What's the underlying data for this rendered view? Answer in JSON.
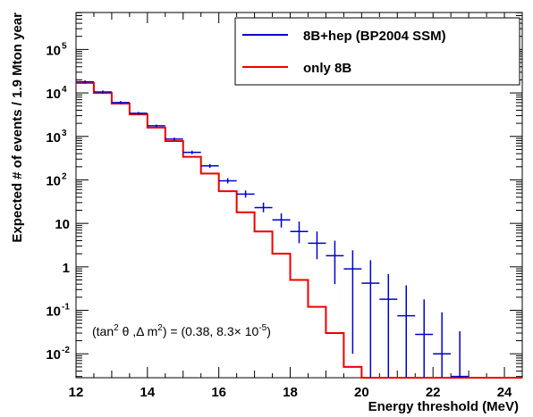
{
  "chart_data": {
    "type": "histogram-step-with-errorbars",
    "xlabel": "Energy threshold (MeV)",
    "ylabel": "Expected # of events / 1.9 Mton year",
    "xlim": [
      12,
      24.5
    ],
    "ylim_log10": [
      -2.55,
      5.85
    ],
    "y_scale": "log",
    "grid": false,
    "legend_position": "top-right",
    "x_ticks": [
      12,
      14,
      16,
      18,
      20,
      22,
      24
    ],
    "x_tick_labels": [
      "12",
      "14",
      "16",
      "18",
      "20",
      "22",
      "24"
    ],
    "y_tick_exponents": [
      -2,
      -1,
      0,
      1,
      2,
      3,
      4,
      5
    ],
    "y_tick_labels": [
      {
        "base": "10",
        "exp": "-2"
      },
      {
        "base": "10",
        "exp": "-1"
      },
      {
        "base": "1",
        "exp": ""
      },
      {
        "base": "10",
        "exp": ""
      },
      {
        "base": "10",
        "exp": "2"
      },
      {
        "base": "10",
        "exp": "3"
      },
      {
        "base": "10",
        "exp": "4"
      },
      {
        "base": "10",
        "exp": "5"
      }
    ],
    "annotation": {
      "a": "(tan",
      "a_sup": "2",
      "b": " θ ,Δ m",
      "b_sup": "2",
      "c": ") = (0.38, 8.3",
      "times": "×",
      "d": " 10",
      "d_sup": "-5",
      "e": ")"
    },
    "series": [
      {
        "name": "8B+hep (BP2004 SSM)",
        "color": "#0000cc",
        "style": "points-with-errorbars",
        "bin_low": [
          12.0,
          12.5,
          13.0,
          13.5,
          14.0,
          14.5,
          15.0,
          15.5,
          16.0,
          16.5,
          17.0,
          17.5,
          18.0,
          18.5,
          19.0,
          19.5,
          20.0,
          20.5,
          21.0,
          21.5,
          22.0,
          22.5
        ],
        "values": [
          18000,
          10500,
          6000,
          3400,
          1750,
          870,
          430,
          210,
          95,
          47,
          23,
          12,
          6.5,
          3.5,
          1.8,
          0.9,
          0.42,
          0.18,
          0.075,
          0.028,
          0.01,
          0.003
        ],
        "err_low": [
          1500,
          900,
          500,
          250,
          120,
          70,
          40,
          22,
          12,
          8,
          5,
          4,
          3,
          2,
          1.4,
          0.89,
          0.418,
          0.1798,
          0.0749,
          0.02799,
          0.00999,
          0.00299
        ],
        "err_high": [
          1500,
          900,
          500,
          250,
          120,
          70,
          40,
          22,
          15,
          10,
          7,
          5,
          4.5,
          3,
          2.2,
          1.5,
          1.0,
          0.5,
          0.3,
          0.15,
          0.08,
          0.03
        ]
      },
      {
        "name": "only 8B",
        "color": "#ee0000",
        "style": "step",
        "bin_low": [
          12.0,
          12.5,
          13.0,
          13.5,
          14.0,
          14.5,
          15.0,
          15.5,
          16.0,
          16.5,
          17.0,
          17.5,
          18.0,
          18.5,
          19.0,
          19.5,
          20.0,
          20.5,
          21.0,
          21.5,
          22.0,
          22.5,
          23.0,
          23.5,
          24.0
        ],
        "bin_width": 0.5,
        "values": [
          17000,
          10000,
          5700,
          3200,
          1600,
          780,
          340,
          140,
          55,
          18,
          6.5,
          2.0,
          0.5,
          0.12,
          0.03,
          0.005,
          0.0028,
          0.0028,
          0.0028,
          0.0028,
          0.0028,
          0.0028,
          0.0028,
          0.0028,
          0.0028
        ]
      }
    ]
  }
}
